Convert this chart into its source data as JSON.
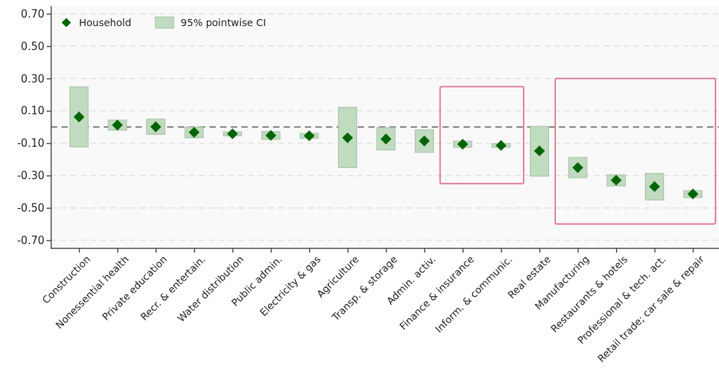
{
  "chart_data": {
    "type": "bar",
    "categories": [
      "Construction",
      "Nonessential health",
      "Private education",
      "Recr. & entertain.",
      "Water distribution",
      "Public admin.",
      "Electricity & gas",
      "Agriculture",
      "Transp. & storage",
      "Admin. activ.",
      "Finance & insurance",
      "Inform. & communic.",
      "Real estate",
      "Manufacturing",
      "Restaurants & hotels",
      "Professional & tech. act.",
      "Retail trade; car sale & repair"
    ],
    "series": [
      {
        "name": "95% pointwise CI",
        "color": "#c0dbc0",
        "base": [
          -0.123,
          -0.02,
          -0.046,
          -0.067,
          -0.055,
          -0.077,
          -0.07,
          -0.251,
          -0.142,
          -0.157,
          -0.126,
          -0.126,
          -0.304,
          -0.314,
          -0.365,
          -0.451,
          -0.436
        ],
        "values": [
          0.371,
          0.063,
          0.095,
          0.067,
          0.025,
          0.049,
          0.031,
          0.373,
          0.138,
          0.14,
          0.039,
          0.023,
          0.308,
          0.126,
          0.069,
          0.164,
          0.043
        ]
      },
      {
        "name": "Household",
        "type": "scatter",
        "color": "#006400",
        "marker": "diamond",
        "x": [
          "Construction",
          "Nonessential health",
          "Private education",
          "Recr. & entertain.",
          "Water distribution",
          "Public admin.",
          "Electricity & gas",
          "Agriculture",
          "Transp. & storage",
          "Admin. activ.",
          "Finance & insurance",
          "Inform. & communic.",
          "Real estate",
          "Manufacturing",
          "Restaurants & hotels",
          "Professional & tech. act.",
          "Retail trade; car sale & repair"
        ],
        "values": [
          0.062,
          0.012,
          0.001,
          -0.033,
          -0.042,
          -0.052,
          -0.054,
          -0.067,
          -0.074,
          -0.086,
          -0.106,
          -0.114,
          -0.148,
          -0.251,
          -0.329,
          -0.368,
          -0.414
        ]
      }
    ],
    "ylim": [
      -0.75,
      0.75
    ],
    "yticks": [
      {
        "value": -0.7,
        "label": "-0.70"
      },
      {
        "value": -0.5,
        "label": "-0.50"
      },
      {
        "value": -0.3,
        "label": "-0.30"
      },
      {
        "value": -0.1,
        "label": "-0.10"
      },
      {
        "value": 0.1,
        "label": "0.10"
      },
      {
        "value": 0.3,
        "label": "0.30"
      },
      {
        "value": 0.5,
        "label": "0.50"
      },
      {
        "value": 0.7,
        "label": "0.70"
      }
    ],
    "grid": "y",
    "legend": "top left",
    "ref_lines": [
      {
        "axis": "y",
        "value": 0,
        "color": "#808080",
        "line_style": "dashed"
      }
    ]
  }
}
